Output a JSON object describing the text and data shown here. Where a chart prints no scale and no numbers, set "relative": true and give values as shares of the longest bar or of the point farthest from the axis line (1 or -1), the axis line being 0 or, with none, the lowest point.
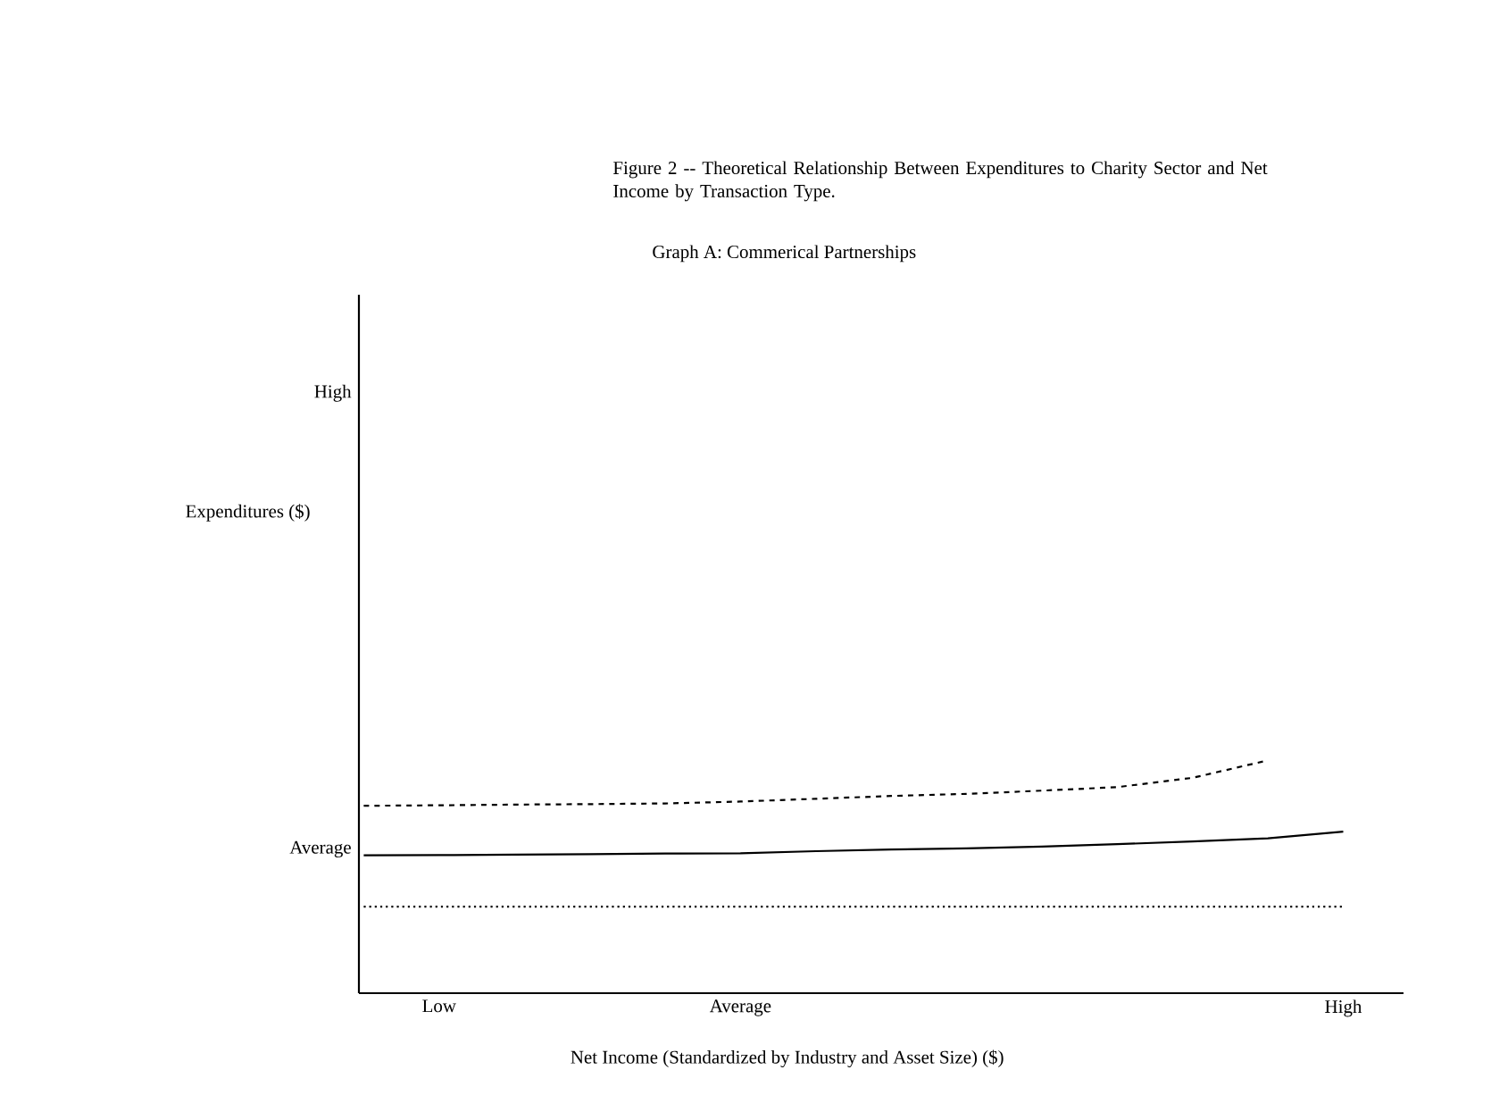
{
  "chart_data": {
    "type": "line",
    "relative": true,
    "title": "Figure 2 -- Theoretical Relationship Between Expenditures to Charity Sector and Net Income by Transaction Type.",
    "subtitle": "Graph A:  Commerical Partnerships",
    "xlabel": "Net Income (Standardized by Industry and Asset Size) ($)",
    "categories": [
      null,
      "Low",
      null,
      null,
      null,
      "Average",
      null,
      null,
      null,
      null,
      null,
      null,
      null,
      "High"
    ],
    "annotations": [
      "High",
      "Expenditures ($)",
      "Average"
    ],
    "series": [
      {
        "color": "#000000",
        "line_style": "dashed",
        "values": [
          0.805,
          0.807,
          0.81,
          0.812,
          0.815,
          0.823,
          0.835,
          0.847,
          0.856,
          0.87,
          0.885,
          0.925,
          1.0,
          null
        ]
      },
      {
        "color": "#000000",
        "line_style": "solid",
        "values": [
          0.592,
          0.593,
          0.595,
          0.597,
          0.6,
          0.601,
          0.61,
          0.617,
          0.622,
          0.63,
          0.64,
          0.652,
          0.665,
          0.694
        ]
      },
      {
        "color": "#000000",
        "line_style": "dotted",
        "values": [
          0.372,
          0.372,
          0.372,
          0.372,
          0.372,
          0.372,
          0.372,
          0.372,
          0.372,
          0.372,
          0.372,
          0.372,
          0.372,
          0.372
        ]
      }
    ]
  }
}
